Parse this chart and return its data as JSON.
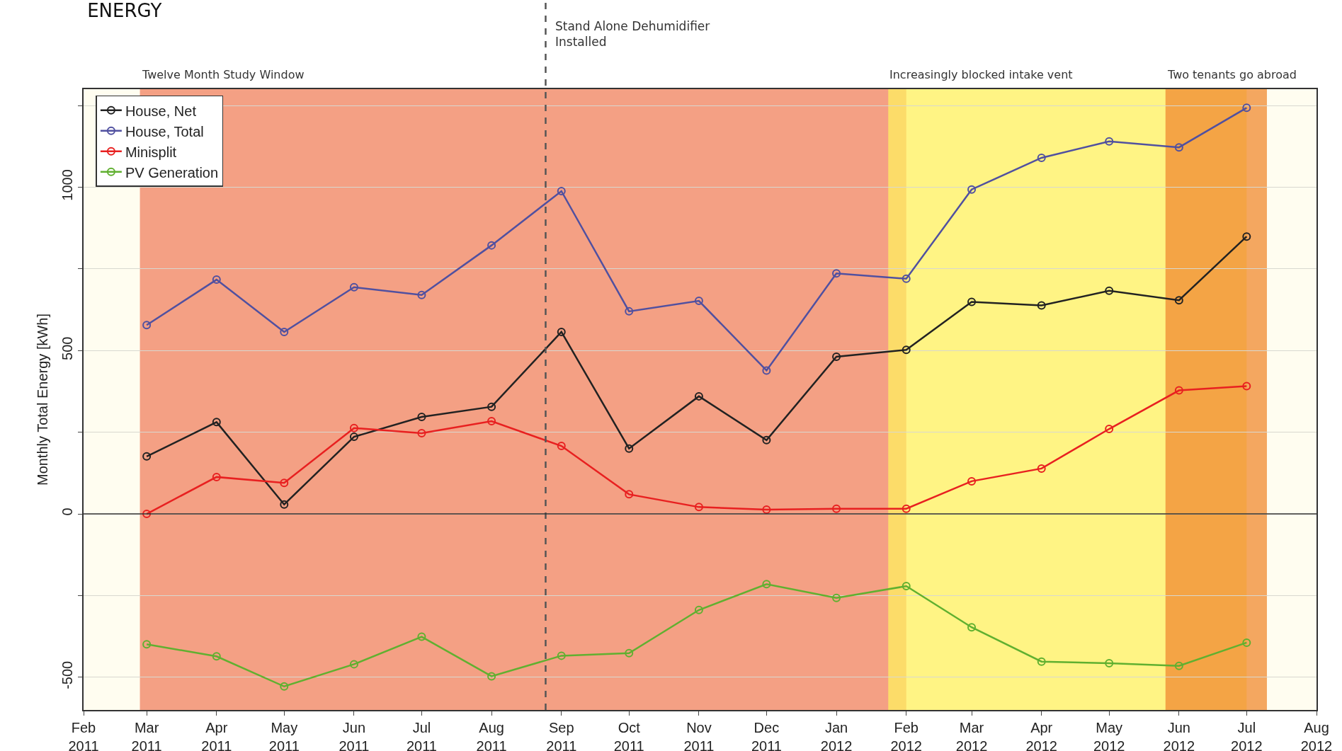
{
  "chart_data": {
    "type": "line",
    "title": "ENERGY",
    "ylabel": "Monthly Total Energy [kWh]",
    "x": [
      "2011-03",
      "2011-04",
      "2011-05",
      "2011-06",
      "2011-07",
      "2011-08",
      "2011-09",
      "2011-10",
      "2011-11",
      "2011-12",
      "2012-01",
      "2012-02",
      "2012-03",
      "2012-04",
      "2012-05",
      "2012-06",
      "2012-07"
    ],
    "series": [
      {
        "name": "House, Net",
        "color": "#222222",
        "values": [
          176,
          281,
          29,
          236,
          297,
          328,
          557,
          200,
          360,
          226,
          481,
          502,
          649,
          638,
          683,
          654,
          849
        ]
      },
      {
        "name": "House, Total",
        "color": "#5050a0",
        "values": [
          578,
          717,
          557,
          694,
          670,
          822,
          988,
          620,
          652,
          439,
          736,
          720,
          993,
          1090,
          1140,
          1122,
          1243
        ]
      },
      {
        "name": "Minisplit",
        "color": "#e82020",
        "values": [
          0,
          113,
          95,
          263,
          247,
          284,
          208,
          60,
          21,
          13,
          16,
          16,
          100,
          139,
          260,
          378,
          391
        ]
      },
      {
        "name": "PV Generation",
        "color": "#60b030",
        "values": [
          -399,
          -436,
          -528,
          -460,
          -376,
          -497,
          -434,
          -426,
          -294,
          -215,
          -257,
          -221,
          -347,
          -452,
          -457,
          -465,
          -394
        ]
      }
    ],
    "xlim": [
      "2011-02",
      "2012-08"
    ],
    "xticks": [
      {
        "value": "2011-02",
        "label": "Feb 2011"
      },
      {
        "value": "2011-03",
        "label": "Mar 2011"
      },
      {
        "value": "2011-04",
        "label": "Apr 2011"
      },
      {
        "value": "2011-05",
        "label": "May 2011"
      },
      {
        "value": "2011-06",
        "label": "Jun 2011"
      },
      {
        "value": "2011-07",
        "label": "Jul 2011"
      },
      {
        "value": "2011-08",
        "label": "Aug 2011"
      },
      {
        "value": "2011-09",
        "label": "Sep 2011"
      },
      {
        "value": "2011-10",
        "label": "Oct 2011"
      },
      {
        "value": "2011-11",
        "label": "Nov 2011"
      },
      {
        "value": "2011-12",
        "label": "Dec 2011"
      },
      {
        "value": "2012-01",
        "label": "Jan 2012"
      },
      {
        "value": "2012-02",
        "label": "Feb 2012"
      },
      {
        "value": "2012-03",
        "label": "Mar 2012"
      },
      {
        "value": "2012-04",
        "label": "Apr 2012"
      },
      {
        "value": "2012-05",
        "label": "May 2012"
      },
      {
        "value": "2012-06",
        "label": "Jun 2012"
      },
      {
        "value": "2012-07",
        "label": "Jul 2012"
      },
      {
        "value": "2012-08",
        "label": "Aug 2012"
      }
    ],
    "ylim": [
      -600,
      1300
    ],
    "yticks": [
      {
        "value": -500,
        "label": "-500"
      },
      {
        "value": -250,
        "label": null
      },
      0,
      {
        "value": 250,
        "label": null
      },
      500,
      {
        "value": 750,
        "label": null
      },
      1000,
      {
        "value": 1250,
        "label": null
      }
    ],
    "ref_lines": [
      {
        "axis": "x",
        "value": "2011-08-25",
        "label": "Stand Alone Dehumidifier Installed",
        "color": "#555555",
        "line_style": "dashed"
      },
      {
        "axis": "y",
        "value": 0,
        "color": "#333333",
        "line_style": "solid"
      }
    ],
    "bands": [
      {
        "axis": "x",
        "from": "2011-02-26",
        "to": "2012-02-01",
        "label": "Twelve Month Study Window",
        "color": "#f08060"
      },
      {
        "axis": "x",
        "from": "2012-01-24",
        "to": "2012-07-01",
        "label": "Increasingly blocked intake vent",
        "color": "#fff060"
      },
      {
        "axis": "x",
        "from": "2012-05-26",
        "to": "2012-07-10",
        "label": "Two tenants go abroad",
        "color": "#f08a30"
      }
    ],
    "grid": "y",
    "legend": "top left",
    "marker": "circle",
    "line_style": "solid"
  }
}
